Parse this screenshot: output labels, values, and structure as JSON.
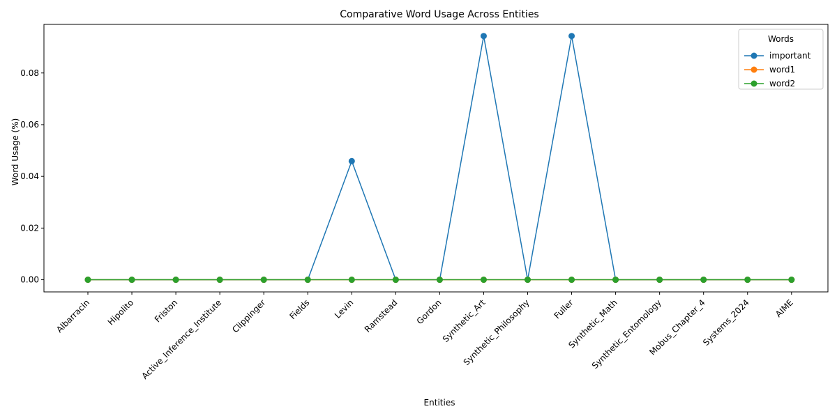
{
  "chart_data": {
    "type": "line",
    "title": "Comparative Word Usage Across Entities",
    "xlabel": "Entities",
    "ylabel": "Word Usage (%)",
    "categories": [
      "Albarracin",
      "Hipolito",
      "Friston",
      "Active_Inference_Institute",
      "Clippinger",
      "Fields",
      "Levin",
      "Ramstead",
      "Gordon",
      "Synthetic_Art",
      "Synthetic_Philosophy",
      "Fuller",
      "Synthetic_Math",
      "Synthetic_Entomology",
      "Mobus_Chapter_4",
      "Systems_2024",
      "AIME"
    ],
    "yticks": [
      "0.00",
      "0.02",
      "0.04",
      "0.06",
      "0.08"
    ],
    "ylim": [
      -0.0047,
      0.0988
    ],
    "grid": false,
    "legend": {
      "title": "Words",
      "placement": "top-right"
    },
    "series": [
      {
        "name": "important",
        "color": "#1f77b4",
        "values": [
          0,
          0,
          0,
          0,
          0,
          0,
          0.0459,
          0,
          0,
          0.0943,
          0,
          0.0943,
          0,
          0,
          0,
          0,
          0
        ]
      },
      {
        "name": "word1",
        "color": "#ff7f0e",
        "values": [
          0,
          0,
          0,
          0,
          0,
          0,
          0,
          0,
          0,
          0,
          0,
          0,
          0,
          0,
          0,
          0,
          0
        ]
      },
      {
        "name": "word2",
        "color": "#2ca02c",
        "values": [
          0,
          0,
          0,
          0,
          0,
          0,
          0,
          0,
          0,
          0,
          0,
          0,
          0,
          0,
          0,
          0,
          0
        ]
      }
    ]
  }
}
